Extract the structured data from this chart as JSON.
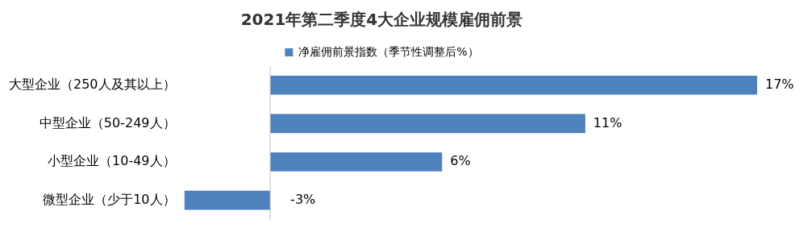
{
  "chart_data": {
    "type": "bar",
    "orientation": "horizontal",
    "title": "2021年第二季度4大企业规模雇佣前景",
    "categories": [
      "大型企业（250人及其以上）",
      "中型企业（50-249人）",
      "小型企业（10-49人）",
      "微型企业（少于10人）"
    ],
    "series": [
      {
        "name": "净雇佣前景指数（季节性调整后%）",
        "color": "#4f81bd",
        "values": [
          17,
          11,
          6,
          -3
        ],
        "value_labels": [
          "17%",
          "11%",
          "6%",
          "-3%"
        ]
      }
    ],
    "xlim": [
      -3,
      17
    ],
    "legend": "top"
  }
}
